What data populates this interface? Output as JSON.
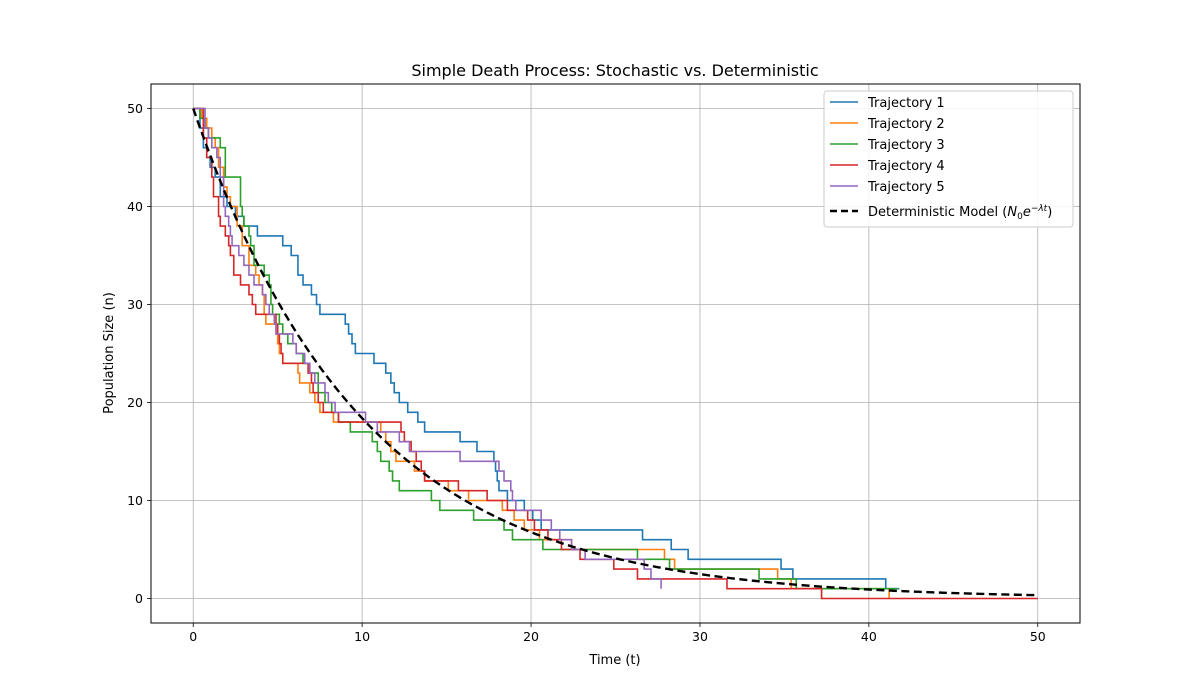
{
  "chart_data": {
    "type": "line",
    "title": "Simple Death Process: Stochastic vs. Deterministic",
    "xlabel": "Time (t)",
    "ylabel": "Population Size (n)",
    "xlim": [
      -2.5,
      52.5
    ],
    "ylim": [
      -2.5,
      52.5
    ],
    "xticks": [
      0,
      10,
      20,
      30,
      40,
      50
    ],
    "yticks": [
      0,
      10,
      20,
      30,
      40,
      50
    ],
    "x_tick_labels": [
      "0",
      "10",
      "20",
      "30",
      "40",
      "50"
    ],
    "y_tick_labels": [
      "0",
      "10",
      "20",
      "30",
      "40",
      "50"
    ],
    "grid": true,
    "legend_position": "top-right",
    "series": [
      {
        "name": "Trajectory 1",
        "color": "#1f77b4",
        "style": "step",
        "points": [
          [
            0,
            50
          ],
          [
            0.4,
            48
          ],
          [
            0.6,
            46
          ],
          [
            0.8,
            45
          ],
          [
            1.0,
            44
          ],
          [
            1.3,
            43
          ],
          [
            1.6,
            41
          ],
          [
            2.0,
            40
          ],
          [
            2.5,
            39
          ],
          [
            3.0,
            38
          ],
          [
            3.8,
            37
          ],
          [
            5.3,
            36
          ],
          [
            5.8,
            35
          ],
          [
            6.2,
            33
          ],
          [
            6.5,
            32
          ],
          [
            7.0,
            31
          ],
          [
            7.3,
            30
          ],
          [
            7.5,
            29
          ],
          [
            9.0,
            28
          ],
          [
            9.2,
            27
          ],
          [
            9.4,
            26
          ],
          [
            9.6,
            25
          ],
          [
            10.7,
            24
          ],
          [
            11.4,
            23
          ],
          [
            11.7,
            22
          ],
          [
            11.9,
            21
          ],
          [
            12.2,
            20
          ],
          [
            12.7,
            19
          ],
          [
            13.3,
            18
          ],
          [
            13.7,
            17
          ],
          [
            15.8,
            16
          ],
          [
            16.8,
            15
          ],
          [
            17.8,
            14
          ],
          [
            17.9,
            13
          ],
          [
            18.0,
            12
          ],
          [
            18.1,
            11
          ],
          [
            18.6,
            10
          ],
          [
            19.6,
            9
          ],
          [
            20.1,
            8
          ],
          [
            20.6,
            7
          ],
          [
            26.6,
            6
          ],
          [
            28.3,
            5
          ],
          [
            29.3,
            4
          ],
          [
            34.8,
            3
          ],
          [
            35.5,
            2
          ],
          [
            41.0,
            1
          ],
          [
            41.8,
            1
          ]
        ]
      },
      {
        "name": "Trajectory 2",
        "color": "#ff7f0e",
        "style": "step",
        "points": [
          [
            0,
            50
          ],
          [
            0.5,
            49
          ],
          [
            0.8,
            48
          ],
          [
            1.1,
            47
          ],
          [
            1.3,
            46
          ],
          [
            1.5,
            44
          ],
          [
            1.8,
            42
          ],
          [
            2.0,
            41
          ],
          [
            2.2,
            40
          ],
          [
            2.6,
            38
          ],
          [
            2.9,
            36
          ],
          [
            3.3,
            34
          ],
          [
            3.7,
            33
          ],
          [
            3.9,
            32
          ],
          [
            4.1,
            31
          ],
          [
            4.2,
            29
          ],
          [
            4.3,
            28
          ],
          [
            4.9,
            27
          ],
          [
            5.0,
            26
          ],
          [
            5.1,
            25
          ],
          [
            5.3,
            24
          ],
          [
            6.2,
            23
          ],
          [
            6.3,
            22
          ],
          [
            6.9,
            21
          ],
          [
            7.2,
            20
          ],
          [
            7.5,
            19
          ],
          [
            8.3,
            18
          ],
          [
            11.1,
            17
          ],
          [
            11.4,
            16
          ],
          [
            11.7,
            15
          ],
          [
            12.0,
            14
          ],
          [
            13.1,
            13
          ],
          [
            13.7,
            12
          ],
          [
            15.1,
            11
          ],
          [
            16.3,
            10
          ],
          [
            18.3,
            9
          ],
          [
            19.0,
            8
          ],
          [
            19.6,
            7
          ],
          [
            20.5,
            6
          ],
          [
            22.4,
            5
          ],
          [
            27.9,
            4
          ],
          [
            28.5,
            3
          ],
          [
            34.6,
            2
          ],
          [
            35.4,
            1
          ],
          [
            41.2,
            0
          ],
          [
            41.2,
            0
          ]
        ]
      },
      {
        "name": "Trajectory 3",
        "color": "#2ca02c",
        "style": "step",
        "points": [
          [
            0,
            50
          ],
          [
            0.4,
            49
          ],
          [
            0.7,
            48
          ],
          [
            0.9,
            47
          ],
          [
            1.6,
            46
          ],
          [
            1.9,
            43
          ],
          [
            2.8,
            40
          ],
          [
            2.9,
            39
          ],
          [
            3.0,
            38
          ],
          [
            3.3,
            37
          ],
          [
            3.4,
            36
          ],
          [
            3.6,
            34
          ],
          [
            4.2,
            33
          ],
          [
            4.5,
            32
          ],
          [
            4.6,
            30
          ],
          [
            4.7,
            29
          ],
          [
            5.1,
            28
          ],
          [
            5.3,
            27
          ],
          [
            5.6,
            26
          ],
          [
            6.1,
            25
          ],
          [
            6.5,
            24
          ],
          [
            6.9,
            23
          ],
          [
            7.4,
            21
          ],
          [
            7.8,
            20
          ],
          [
            8.2,
            19
          ],
          [
            8.6,
            18
          ],
          [
            9.3,
            17
          ],
          [
            10.6,
            16
          ],
          [
            10.9,
            15
          ],
          [
            11.1,
            14
          ],
          [
            11.6,
            13
          ],
          [
            11.8,
            12
          ],
          [
            12.2,
            11
          ],
          [
            14.1,
            10
          ],
          [
            14.6,
            9
          ],
          [
            16.6,
            8
          ],
          [
            18.4,
            7
          ],
          [
            18.9,
            6
          ],
          [
            20.7,
            5
          ],
          [
            26.3,
            4
          ],
          [
            28.2,
            3
          ],
          [
            33.5,
            2
          ],
          [
            35.7,
            1
          ],
          [
            41.7,
            1
          ]
        ]
      },
      {
        "name": "Trajectory 4",
        "color": "#d62728",
        "style": "step",
        "points": [
          [
            0,
            50
          ],
          [
            0.6,
            47
          ],
          [
            0.8,
            45
          ],
          [
            1.1,
            43
          ],
          [
            1.2,
            41
          ],
          [
            1.5,
            39
          ],
          [
            1.6,
            38
          ],
          [
            1.9,
            37
          ],
          [
            2.1,
            36
          ],
          [
            2.2,
            35
          ],
          [
            2.4,
            33
          ],
          [
            2.8,
            32
          ],
          [
            3.3,
            31
          ],
          [
            3.5,
            30
          ],
          [
            3.7,
            29
          ],
          [
            4.9,
            28
          ],
          [
            5.0,
            27
          ],
          [
            5.1,
            26
          ],
          [
            5.2,
            25
          ],
          [
            5.3,
            24
          ],
          [
            6.8,
            23
          ],
          [
            7.0,
            22
          ],
          [
            7.1,
            21
          ],
          [
            7.4,
            20
          ],
          [
            7.7,
            19
          ],
          [
            8.6,
            18
          ],
          [
            12.3,
            17
          ],
          [
            12.5,
            16
          ],
          [
            12.9,
            15
          ],
          [
            13.2,
            14
          ],
          [
            13.5,
            13
          ],
          [
            13.7,
            12
          ],
          [
            15.7,
            11
          ],
          [
            17.4,
            10
          ],
          [
            18.6,
            9
          ],
          [
            19.8,
            8
          ],
          [
            20.2,
            7
          ],
          [
            21.0,
            6
          ],
          [
            21.8,
            5
          ],
          [
            22.9,
            4
          ],
          [
            24.9,
            3
          ],
          [
            26.3,
            2
          ],
          [
            31.6,
            1
          ],
          [
            37.2,
            0
          ],
          [
            50.0,
            0
          ]
        ]
      },
      {
        "name": "Trajectory 5",
        "color": "#9467bd",
        "style": "step",
        "points": [
          [
            0,
            50
          ],
          [
            0.7,
            48
          ],
          [
            0.9,
            47
          ],
          [
            1.1,
            46
          ],
          [
            1.4,
            45
          ],
          [
            1.6,
            43
          ],
          [
            1.8,
            40
          ],
          [
            1.9,
            39
          ],
          [
            2.1,
            38
          ],
          [
            2.2,
            37
          ],
          [
            2.3,
            36
          ],
          [
            2.7,
            35
          ],
          [
            3.0,
            34
          ],
          [
            3.3,
            33
          ],
          [
            3.6,
            32
          ],
          [
            4.1,
            31
          ],
          [
            4.3,
            30
          ],
          [
            4.5,
            29
          ],
          [
            4.8,
            28
          ],
          [
            4.9,
            27
          ],
          [
            5.9,
            26
          ],
          [
            6.1,
            25
          ],
          [
            6.6,
            24
          ],
          [
            6.9,
            23
          ],
          [
            7.2,
            22
          ],
          [
            7.8,
            21
          ],
          [
            8.0,
            20
          ],
          [
            8.4,
            19
          ],
          [
            10.2,
            18
          ],
          [
            10.9,
            17
          ],
          [
            12.2,
            16
          ],
          [
            12.8,
            15
          ],
          [
            15.8,
            14
          ],
          [
            18.1,
            13
          ],
          [
            18.4,
            12
          ],
          [
            18.8,
            11
          ],
          [
            18.9,
            10
          ],
          [
            19.1,
            9
          ],
          [
            20.6,
            8
          ],
          [
            21.2,
            7
          ],
          [
            21.7,
            6
          ],
          [
            22.4,
            5
          ],
          [
            23.2,
            4
          ],
          [
            26.7,
            3
          ],
          [
            27.1,
            2
          ],
          [
            27.7,
            1
          ],
          [
            27.7,
            1
          ]
        ]
      },
      {
        "name": "Deterministic Model ($N_0e^{-\\lambda t}$)",
        "color": "#000000",
        "style": "dashed",
        "function": "exp_decay",
        "N0": 50,
        "lambda": 0.1,
        "x_range": [
          0,
          50
        ]
      }
    ]
  },
  "legend": {
    "entries": [
      "Trajectory 1",
      "Trajectory 2",
      "Trajectory 3",
      "Trajectory 4",
      "Trajectory 5"
    ],
    "det_prefix": "Deterministic Model (",
    "det_n": "N",
    "det_sub0": "0",
    "det_e": "e",
    "det_exp": "−λt",
    "det_suffix": ")"
  }
}
